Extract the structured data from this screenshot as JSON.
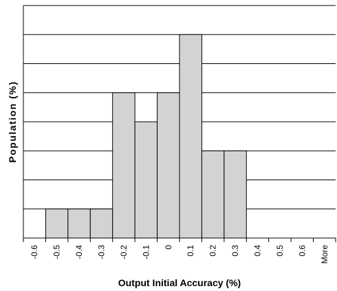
{
  "chart_data": {
    "type": "bar",
    "categories": [
      "-0.6",
      "-0.5",
      "-0.4",
      "-0.3",
      "-0.2",
      "-0.1",
      "0",
      "0.1",
      "0.2",
      "0.3",
      "0.4",
      "0.5",
      "0.6",
      "More"
    ],
    "series": [
      {
        "values": [
          0,
          1,
          1,
          1,
          5,
          4,
          5,
          7,
          3,
          3,
          0,
          0,
          0,
          0
        ]
      }
    ],
    "xlabel": "Output Initial Accuracy (%)",
    "ylabel": "Population (%)",
    "ylim": [
      0,
      8
    ],
    "grid": "horizontal",
    "bar_color": "#d3d3d3",
    "bar_edge_color": "#000000"
  }
}
